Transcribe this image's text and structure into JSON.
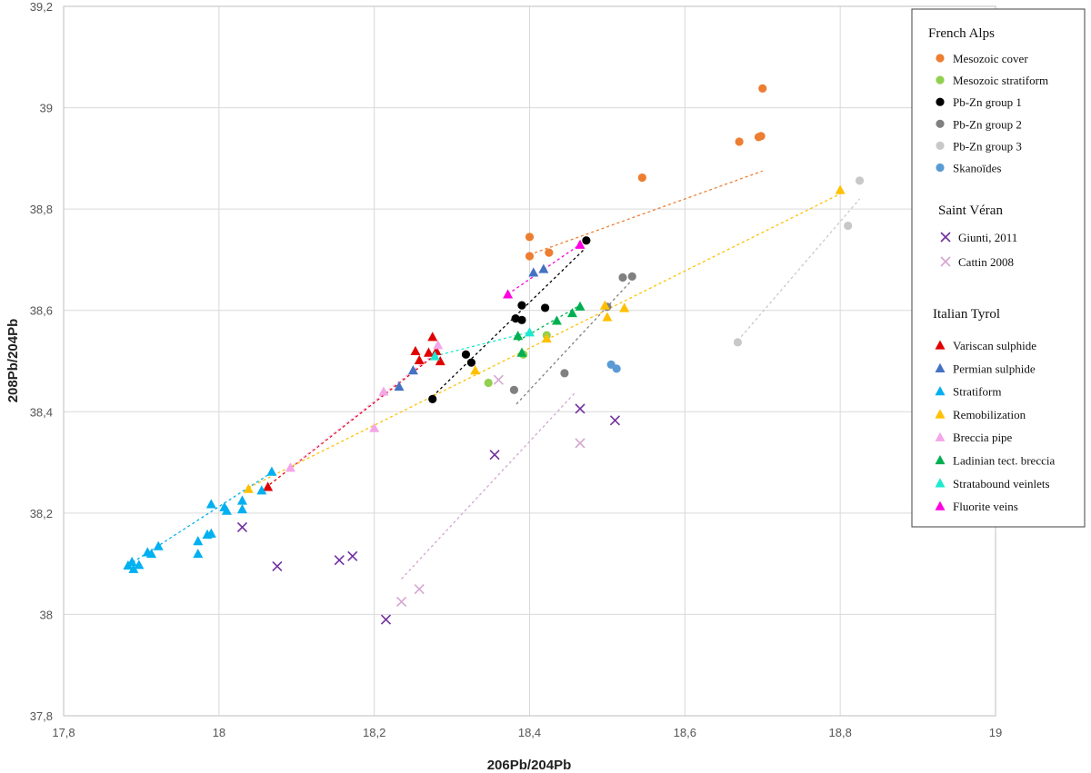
{
  "chart_data": {
    "type": "scatter",
    "xlabel": "206Pb/204Pb",
    "ylabel": "208Pb/204Pb",
    "xlim": [
      17.8,
      19
    ],
    "ylim": [
      37.8,
      39.2
    ],
    "x_ticks": [
      "17,8",
      "18",
      "18,2",
      "18,4",
      "18,6",
      "18,8",
      "19"
    ],
    "y_ticks": [
      "37,8",
      "38",
      "38,2",
      "38,4",
      "38,6",
      "38,8",
      "39",
      "39,2"
    ],
    "grid": true,
    "legend_placement": "right",
    "legend_groups": [
      {
        "title": "French Alps",
        "entries": [
          "Mesozoic cover",
          "Mesozoic stratiform",
          "Pb-Zn group 1",
          "Pb-Zn group 2",
          "Pb-Zn group 3",
          "Skanoïdes"
        ]
      },
      {
        "title": "Saint Véran",
        "entries": [
          "Giunti, 2011",
          "Cattin 2008"
        ]
      },
      {
        "title": "Italian Tyrol",
        "entries": [
          "Variscan sulphide",
          "Permian sulphide",
          "Stratiform",
          "Remobilization",
          "Breccia pipe",
          "Ladinian tect. breccia",
          "Stratabound veinlets",
          "Fluorite veins"
        ]
      }
    ],
    "series": [
      {
        "name": "Mesozoic cover",
        "marker": "circle",
        "color": "#ED7D31",
        "points": [
          [
            18.4,
            38.745
          ],
          [
            18.4,
            38.707
          ],
          [
            18.425,
            38.714
          ],
          [
            18.545,
            38.862
          ],
          [
            18.67,
            38.933
          ],
          [
            18.695,
            38.942
          ],
          [
            18.698,
            38.944
          ],
          [
            18.7,
            39.038
          ]
        ],
        "trend": [
          [
            18.4,
            38.71
          ],
          [
            18.7,
            38.875
          ]
        ]
      },
      {
        "name": "Mesozoic stratiform",
        "marker": "circle",
        "color": "#92D050",
        "points": [
          [
            18.347,
            38.457
          ],
          [
            18.392,
            38.513
          ],
          [
            18.422,
            38.551
          ]
        ]
      },
      {
        "name": "Pb-Zn group 1",
        "marker": "circle",
        "color": "#000000",
        "points": [
          [
            18.275,
            38.425
          ],
          [
            18.318,
            38.513
          ],
          [
            18.325,
            38.497
          ],
          [
            18.382,
            38.584
          ],
          [
            18.39,
            38.61
          ],
          [
            18.39,
            38.581
          ],
          [
            18.42,
            38.605
          ],
          [
            18.473,
            38.738
          ]
        ],
        "trend": [
          [
            18.275,
            38.43
          ],
          [
            18.47,
            38.72
          ]
        ]
      },
      {
        "name": "Pb-Zn group 2",
        "marker": "circle",
        "color": "#808080",
        "points": [
          [
            18.38,
            38.443
          ],
          [
            18.445,
            38.476
          ],
          [
            18.5,
            38.607
          ],
          [
            18.52,
            38.665
          ],
          [
            18.532,
            38.667
          ]
        ],
        "trend": [
          [
            18.383,
            38.415
          ],
          [
            18.532,
            38.66
          ]
        ]
      },
      {
        "name": "Pb-Zn group 3",
        "marker": "circle",
        "color": "#C8C8C8",
        "points": [
          [
            18.668,
            38.537
          ],
          [
            18.81,
            38.767
          ],
          [
            18.825,
            38.856
          ]
        ],
        "trend": [
          [
            18.668,
            38.54
          ],
          [
            18.825,
            38.82
          ]
        ]
      },
      {
        "name": "Skanoïdes",
        "marker": "circle",
        "color": "#5B9BD5",
        "points": [
          [
            18.505,
            38.493
          ],
          [
            18.512,
            38.485
          ]
        ]
      },
      {
        "name": "Giunti, 2011",
        "marker": "x",
        "color": "#7030A0",
        "points": [
          [
            18.03,
            38.172
          ],
          [
            18.075,
            38.095
          ],
          [
            18.155,
            38.107
          ],
          [
            18.172,
            38.115
          ],
          [
            18.215,
            37.99
          ],
          [
            18.355,
            38.315
          ],
          [
            18.465,
            38.406
          ],
          [
            18.51,
            38.383
          ]
        ]
      },
      {
        "name": "Cattin 2008",
        "marker": "x",
        "color": "#D5A6D0",
        "points": [
          [
            18.235,
            38.025
          ],
          [
            18.258,
            38.05
          ],
          [
            18.36,
            38.463
          ],
          [
            18.465,
            38.338
          ]
        ],
        "trend": [
          [
            18.235,
            38.07
          ],
          [
            18.46,
            38.44
          ]
        ]
      },
      {
        "name": "Variscan sulphide",
        "marker": "triangle",
        "color": "#E00000",
        "points": [
          [
            18.063,
            38.252
          ],
          [
            18.253,
            38.52
          ],
          [
            18.258,
            38.502
          ],
          [
            18.27,
            38.517
          ],
          [
            18.275,
            38.548
          ],
          [
            18.28,
            38.52
          ],
          [
            18.285,
            38.5
          ]
        ],
        "trend": [
          [
            18.06,
            38.25
          ],
          [
            18.285,
            38.52
          ]
        ]
      },
      {
        "name": "Permian sulphide",
        "marker": "triangle",
        "color": "#4472C4",
        "points": [
          [
            18.232,
            38.45
          ],
          [
            18.25,
            38.482
          ],
          [
            18.405,
            38.675
          ],
          [
            18.418,
            38.682
          ]
        ]
      },
      {
        "name": "Stratiform",
        "marker": "triangle",
        "color": "#00B0F0",
        "points": [
          [
            17.883,
            38.097
          ],
          [
            17.888,
            38.104
          ],
          [
            17.89,
            38.09
          ],
          [
            17.897,
            38.098
          ],
          [
            17.908,
            38.123
          ],
          [
            17.913,
            38.12
          ],
          [
            17.922,
            38.135
          ],
          [
            17.973,
            38.12
          ],
          [
            17.973,
            38.145
          ],
          [
            17.985,
            38.158
          ],
          [
            17.99,
            38.218
          ],
          [
            17.99,
            38.16
          ],
          [
            18.007,
            38.212
          ],
          [
            18.01,
            38.205
          ],
          [
            18.03,
            38.225
          ],
          [
            18.03,
            38.208
          ],
          [
            18.055,
            38.245
          ],
          [
            18.068,
            38.282
          ]
        ],
        "trend": [
          [
            17.883,
            38.097
          ],
          [
            18.068,
            38.28
          ]
        ]
      },
      {
        "name": "Remobilization",
        "marker": "triangle",
        "color": "#FFC000",
        "points": [
          [
            18.038,
            38.248
          ],
          [
            18.33,
            38.482
          ],
          [
            18.422,
            38.545
          ],
          [
            18.497,
            38.61
          ],
          [
            18.5,
            38.587
          ],
          [
            18.522,
            38.605
          ],
          [
            18.8,
            38.838
          ]
        ],
        "trend": [
          [
            18.038,
            38.25
          ],
          [
            18.8,
            38.83
          ]
        ]
      },
      {
        "name": "Breccia pipe",
        "marker": "triangle",
        "color": "#F4A6E8",
        "points": [
          [
            18.092,
            38.29
          ],
          [
            18.2,
            38.368
          ],
          [
            18.212,
            38.44
          ],
          [
            18.282,
            38.532
          ]
        ],
        "trend": [
          [
            18.092,
            38.29
          ],
          [
            18.282,
            38.52
          ]
        ]
      },
      {
        "name": "Ladinian tect. breccia",
        "marker": "triangle",
        "color": "#00B050",
        "points": [
          [
            18.385,
            38.55
          ],
          [
            18.39,
            38.517
          ],
          [
            18.435,
            38.58
          ],
          [
            18.455,
            38.595
          ],
          [
            18.465,
            38.608
          ]
        ],
        "trend": [
          [
            18.385,
            38.54
          ],
          [
            18.465,
            38.61
          ]
        ]
      },
      {
        "name": "Stratabound veinlets",
        "marker": "triangle",
        "color": "#1DE9D1",
        "points": [
          [
            18.278,
            38.51
          ],
          [
            18.4,
            38.557
          ]
        ],
        "trend": [
          [
            18.278,
            38.51
          ],
          [
            18.4,
            38.557
          ]
        ]
      },
      {
        "name": "Fluorite veins",
        "marker": "triangle",
        "color": "#FF00E0",
        "points": [
          [
            18.372,
            38.632
          ],
          [
            18.465,
            38.73
          ]
        ],
        "trend": [
          [
            18.372,
            38.632
          ],
          [
            18.465,
            38.73
          ]
        ]
      }
    ]
  }
}
